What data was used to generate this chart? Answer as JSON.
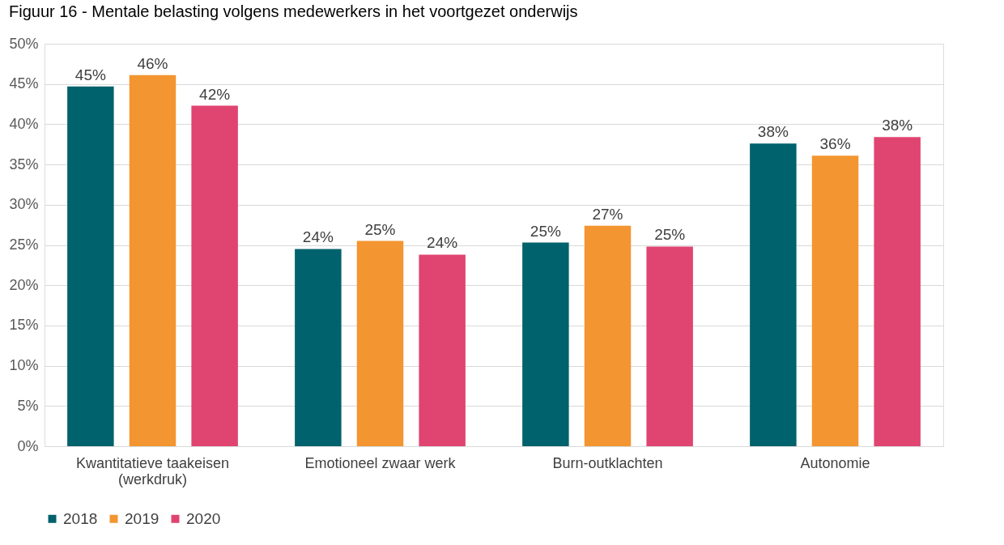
{
  "chart_data": {
    "type": "bar",
    "title": "Figuur 16 - Mentale belasting volgens medewerkers in het voortgezet onderwijs",
    "categories": [
      "Kwantitatieve taakeisen (werkdruk)",
      "Emotioneel zwaar werk",
      "Burn-outklachten",
      "Autonomie"
    ],
    "series": [
      {
        "name": "2018",
        "color": "#00626c",
        "values": [
          44.7,
          24.5,
          25.3,
          37.6
        ],
        "value_labels": [
          "45%",
          "24%",
          "25%",
          "38%"
        ]
      },
      {
        "name": "2019",
        "color": "#f39530",
        "values": [
          46.1,
          25.5,
          27.4,
          36.1
        ],
        "value_labels": [
          "46%",
          "25%",
          "27%",
          "36%"
        ]
      },
      {
        "name": "2020",
        "color": "#e04470",
        "values": [
          42.3,
          23.8,
          24.8,
          38.4
        ],
        "value_labels": [
          "42%",
          "24%",
          "25%",
          "38%"
        ]
      }
    ],
    "ylim": [
      0,
      50
    ],
    "yticks": [
      {
        "value": 0,
        "label": "0%"
      },
      {
        "value": 5,
        "label": "5%"
      },
      {
        "value": 10,
        "label": "10%"
      },
      {
        "value": 15,
        "label": "15%"
      },
      {
        "value": 20,
        "label": "20%"
      },
      {
        "value": 25,
        "label": "25%"
      },
      {
        "value": 30,
        "label": "30%"
      },
      {
        "value": 35,
        "label": "35%"
      },
      {
        "value": 40,
        "label": "40%"
      },
      {
        "value": 45,
        "label": "45%"
      },
      {
        "value": 50,
        "label": "50%"
      }
    ],
    "grid": "y",
    "legend": "bottom"
  }
}
